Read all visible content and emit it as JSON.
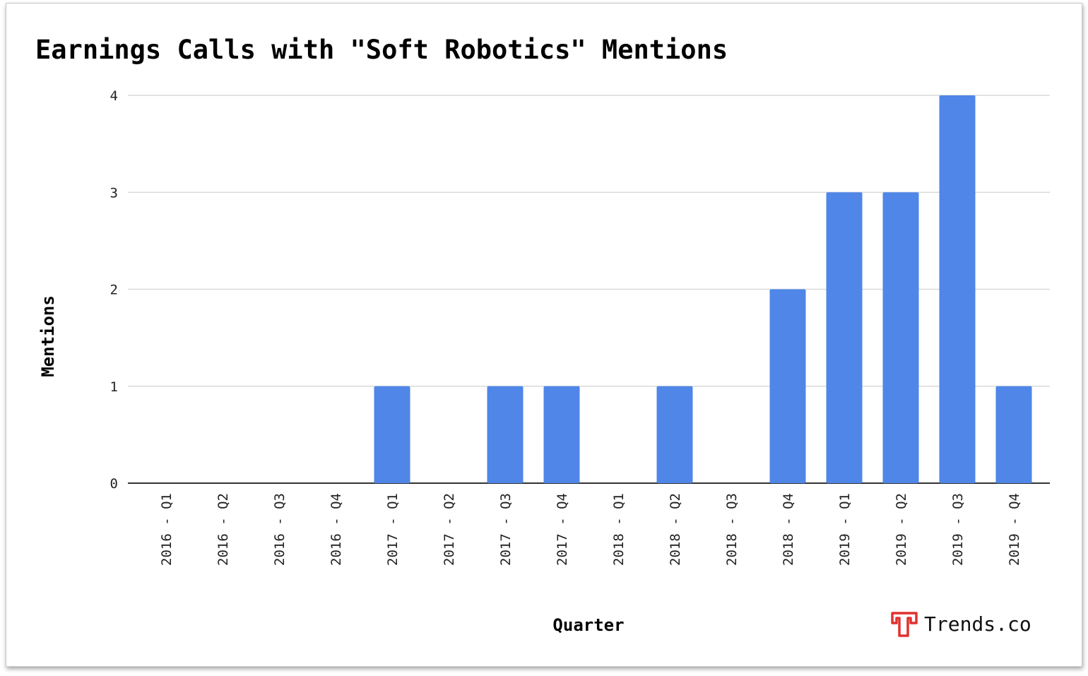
{
  "chart_data": {
    "type": "bar",
    "title": "Earnings Calls with \"Soft Robotics\" Mentions",
    "xlabel": "Quarter",
    "ylabel": "Mentions",
    "categories": [
      "2016 - Q1",
      "2016 - Q2",
      "2016 - Q3",
      "2016 - Q4",
      "2017 - Q1",
      "2017 - Q2",
      "2017 - Q3",
      "2017 - Q4",
      "2018 - Q1",
      "2018 - Q2",
      "2018 - Q3",
      "2018 - Q4",
      "2019 - Q1",
      "2019 - Q2",
      "2019 - Q3",
      "2019 - Q4"
    ],
    "values": [
      0,
      0,
      0,
      0,
      1,
      0,
      1,
      1,
      0,
      1,
      0,
      2,
      3,
      3,
      4,
      1
    ],
    "ylim": [
      0,
      4
    ],
    "yticks": [
      "0",
      "1",
      "2",
      "3",
      "4"
    ],
    "grid": true,
    "bar_color": "#4f86e8",
    "legend": "none"
  },
  "branding": {
    "logo_icon": "trends-logo-icon",
    "logo_color": "#e0322e",
    "name": "Trends.co"
  }
}
